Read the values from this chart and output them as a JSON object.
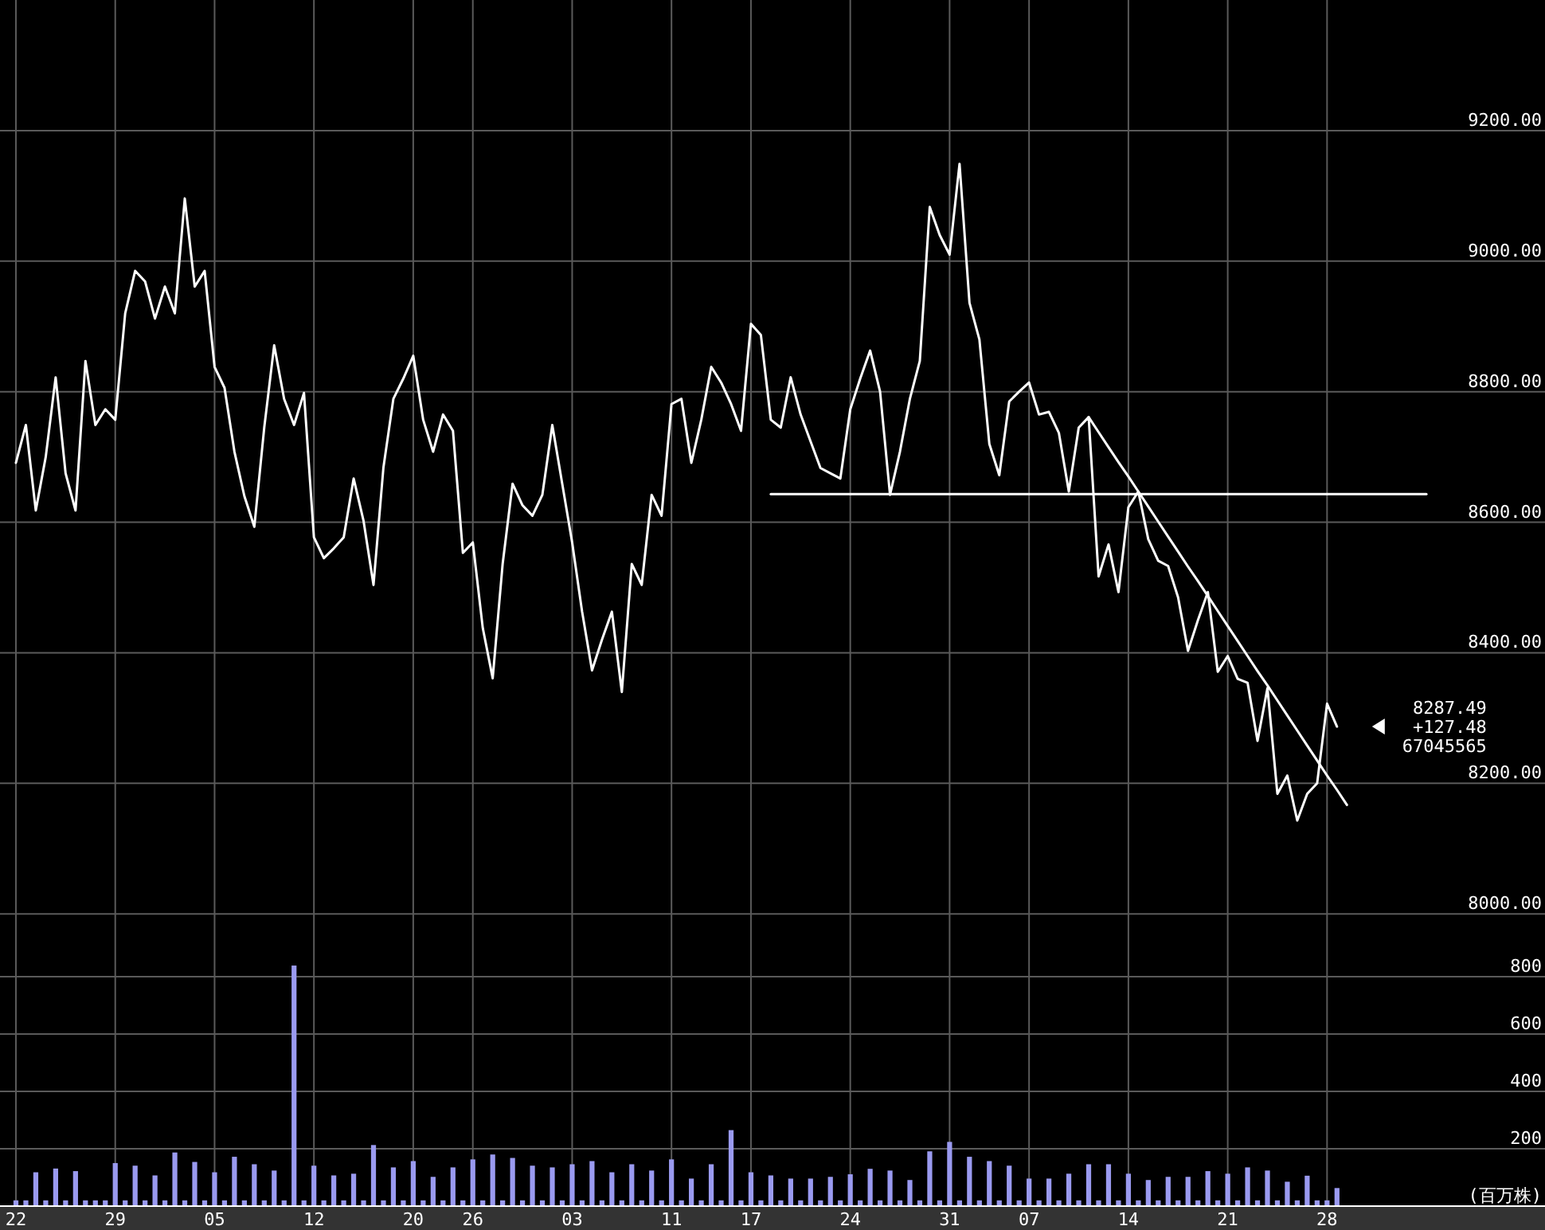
{
  "chart_data": [
    {
      "type": "line",
      "tick_labels": "y",
      "grid": true,
      "line_style": "solid",
      "marker": "none",
      "categories": [
        "22",
        null,
        null,
        null,
        null,
        null,
        null,
        null,
        null,
        null,
        "29",
        null,
        null,
        null,
        null,
        null,
        null,
        null,
        null,
        null,
        "05",
        null,
        null,
        null,
        null,
        null,
        null,
        null,
        null,
        null,
        "12",
        null,
        null,
        null,
        null,
        null,
        null,
        null,
        null,
        null,
        "20",
        null,
        null,
        null,
        null,
        null,
        "26",
        null,
        null,
        null,
        null,
        null,
        null,
        null,
        null,
        null,
        "03",
        null,
        null,
        null,
        null,
        null,
        null,
        null,
        null,
        null,
        "11",
        null,
        null,
        null,
        null,
        null,
        null,
        null,
        "17",
        null,
        null,
        null,
        null,
        null,
        null,
        null,
        null,
        null,
        "24",
        null,
        null,
        null,
        null,
        null,
        null,
        null,
        null,
        null,
        "31",
        null,
        null,
        null,
        null,
        null,
        null,
        null,
        "07",
        null,
        null,
        null,
        null,
        null,
        null,
        null,
        null,
        null,
        "14",
        null,
        null,
        null,
        null,
        null,
        null,
        null,
        null,
        null,
        "21",
        null,
        null,
        null,
        null,
        null,
        null,
        null,
        null,
        null,
        "28",
        null,
        null,
        null,
        null,
        null,
        null,
        null,
        null,
        null,
        null,
        null,
        null
      ],
      "ylim": [
        7960,
        9400
      ],
      "yticks": [
        {
          "value": 8000,
          "label": "8000.00"
        },
        {
          "value": 8200,
          "label": "8200.00"
        },
        {
          "value": 8400,
          "label": "8400.00"
        },
        {
          "value": 8600,
          "label": "8600.00"
        },
        {
          "value": 8800,
          "label": "8800.00"
        },
        {
          "value": 9000,
          "label": "9000.00"
        },
        {
          "value": 9200,
          "label": "9200.00"
        }
      ],
      "series": [
        {
          "color": "#ffffff",
          "values": [
            8691,
            8749,
            8618,
            8700,
            8822,
            8675,
            8618,
            8847,
            8749,
            8773,
            8757,
            8920,
            8985,
            8969,
            8912,
            8961,
            8920,
            9096,
            8961,
            8985,
            8838,
            8806,
            8708,
            8640,
            8593,
            8745,
            8871,
            8789,
            8749,
            8798,
            8577,
            8545,
            8560,
            8577,
            8667,
            8602,
            8504,
            8684,
            8789,
            8820,
            8855,
            8757,
            8708,
            8765,
            8740,
            8553,
            8569,
            8438,
            8361,
            8536,
            8659,
            8626,
            8610,
            8642,
            8749,
            8659,
            8569,
            8463,
            8373,
            8420,
            8463,
            8340,
            8536,
            8504,
            8642,
            8610,
            8781,
            8789,
            8691,
            8757,
            8838,
            8814,
            8781,
            8740,
            8904,
            8887,
            8757,
            8745,
            8822,
            8765,
            8724,
            8683,
            8675,
            8667,
            8773,
            8820,
            8863,
            8800,
            8642,
            8708,
            8789,
            8847,
            9083,
            9040,
            9010,
            9149,
            8936,
            8880,
            8720,
            8672,
            8785,
            8800,
            8814,
            8765,
            8769,
            8737,
            8647,
            8745,
            8761,
            8517,
            8566,
            8493,
            8623,
            8647,
            8574,
            8541,
            8533,
            8485,
            8403,
            8450,
            8493,
            8371,
            8395,
            8360,
            8354,
            8265,
            8346,
            8184,
            8212,
            8143,
            8184,
            8200,
            8322,
            8287,
            null,
            null,
            null,
            null,
            null,
            null,
            null,
            null,
            null,
            null,
            null
          ]
        },
        {
          "color": "#ffffff",
          "values": [
            null,
            null,
            null,
            null,
            null,
            null,
            null,
            null,
            null,
            null,
            null,
            null,
            null,
            null,
            null,
            null,
            null,
            null,
            null,
            null,
            null,
            null,
            null,
            null,
            null,
            null,
            null,
            null,
            null,
            null,
            null,
            null,
            null,
            null,
            null,
            null,
            null,
            null,
            null,
            null,
            null,
            null,
            null,
            null,
            null,
            null,
            null,
            null,
            null,
            null,
            null,
            null,
            null,
            null,
            null,
            null,
            null,
            null,
            null,
            null,
            null,
            null,
            null,
            null,
            null,
            null,
            null,
            null,
            null,
            null,
            null,
            null,
            null,
            null,
            null,
            null,
            null,
            null,
            null,
            null,
            null,
            null,
            null,
            null,
            null,
            null,
            null,
            null,
            null,
            null,
            null,
            null,
            null,
            null,
            null,
            null,
            null,
            null,
            null,
            null,
            null,
            null,
            null,
            null,
            null,
            null,
            null,
            null,
            8761,
            8738,
            8715,
            8692,
            8670,
            8647,
            8624,
            8601,
            8578,
            8555,
            8532,
            8510,
            8487,
            8464,
            8441,
            8418,
            8395,
            8372,
            8350,
            8327,
            8304,
            8281,
            8258,
            8235,
            8212,
            8190,
            8167,
            null,
            null,
            null,
            null,
            null,
            null,
            null,
            null,
            null,
            null
          ]
        },
        {
          "color": "#ffffff",
          "values": [
            null,
            null,
            null,
            null,
            null,
            null,
            null,
            null,
            null,
            null,
            null,
            null,
            null,
            null,
            null,
            null,
            null,
            null,
            null,
            null,
            null,
            null,
            null,
            null,
            null,
            null,
            null,
            null,
            null,
            null,
            null,
            null,
            null,
            null,
            null,
            null,
            null,
            null,
            null,
            null,
            null,
            null,
            null,
            null,
            null,
            null,
            null,
            null,
            null,
            null,
            null,
            null,
            null,
            null,
            null,
            null,
            null,
            null,
            null,
            null,
            null,
            null,
            null,
            null,
            null,
            null,
            null,
            null,
            null,
            null,
            null,
            null,
            null,
            null,
            null,
            null,
            8643,
            8643,
            8643,
            8643,
            8643,
            8643,
            8643,
            8643,
            8643,
            8643,
            8643,
            8643,
            8643,
            8643,
            8643,
            8643,
            8643,
            8643,
            8643,
            8643,
            8643,
            8643,
            8643,
            8643,
            8643,
            8643,
            8643,
            8643,
            8643,
            8643,
            8643,
            8643,
            8643,
            8643,
            8643,
            8643,
            8643,
            8643,
            8643,
            8643,
            8643,
            8643,
            8643,
            8643,
            8643,
            8643,
            8643,
            8643,
            8643,
            8643,
            8643,
            8643,
            8643,
            8643,
            8643,
            8643,
            8643,
            8643,
            8643,
            8643,
            8643,
            8643,
            8643,
            8643,
            8643,
            8643,
            8643,
            null,
            null
          ]
        }
      ],
      "annotations": [
        "8287.49",
        "+127.48",
        "67045565"
      ]
    },
    {
      "type": "bar",
      "grid": true,
      "ylabel": "(百万株)",
      "color": "#9a9af0",
      "categories": [
        "22",
        null,
        null,
        null,
        null,
        null,
        null,
        null,
        null,
        null,
        "29",
        null,
        null,
        null,
        null,
        null,
        null,
        null,
        null,
        null,
        "05",
        null,
        null,
        null,
        null,
        null,
        null,
        null,
        null,
        null,
        "12",
        null,
        null,
        null,
        null,
        null,
        null,
        null,
        null,
        null,
        "20",
        null,
        null,
        null,
        null,
        null,
        "26",
        null,
        null,
        null,
        null,
        null,
        null,
        null,
        null,
        null,
        "03",
        null,
        null,
        null,
        null,
        null,
        null,
        null,
        null,
        null,
        "11",
        null,
        null,
        null,
        null,
        null,
        null,
        null,
        "17",
        null,
        null,
        null,
        null,
        null,
        null,
        null,
        null,
        null,
        "24",
        null,
        null,
        null,
        null,
        null,
        null,
        null,
        null,
        null,
        "31",
        null,
        null,
        null,
        null,
        null,
        null,
        null,
        "07",
        null,
        null,
        null,
        null,
        null,
        null,
        null,
        null,
        null,
        "14",
        null,
        null,
        null,
        null,
        null,
        null,
        null,
        null,
        null,
        "21",
        null,
        null,
        null,
        null,
        null,
        null,
        null,
        null,
        null,
        "28",
        null,
        null,
        null,
        null,
        null,
        null,
        null,
        null,
        null,
        null,
        null,
        null
      ],
      "ylim": [
        0,
        928
      ],
      "yticks": [
        200,
        400,
        600,
        800
      ],
      "values": [
        20,
        20,
        118,
        20,
        131,
        20,
        122,
        20,
        20,
        20,
        150,
        20,
        141,
        20,
        107,
        20,
        187,
        20,
        154,
        20,
        118,
        20,
        172,
        20,
        146,
        20,
        124,
        20,
        839,
        20,
        141,
        20,
        107,
        20,
        113,
        20,
        213,
        20,
        135,
        20,
        157,
        20,
        102,
        20,
        135,
        20,
        163,
        20,
        180,
        20,
        168,
        20,
        141,
        20,
        135,
        20,
        146,
        20,
        157,
        20,
        118,
        20,
        146,
        20,
        124,
        20,
        163,
        20,
        96,
        20,
        146,
        20,
        265,
        20,
        118,
        20,
        107,
        20,
        96,
        20,
        96,
        20,
        102,
        20,
        111,
        20,
        130,
        20,
        124,
        20,
        91,
        20,
        191,
        20,
        224,
        20,
        172,
        20,
        157,
        20,
        141,
        20,
        96,
        20,
        96,
        20,
        113,
        20,
        146,
        20,
        146,
        20,
        113,
        20,
        91,
        20,
        102,
        20,
        102,
        20,
        122,
        20,
        113,
        20,
        135,
        20,
        124,
        20,
        85,
        20,
        106,
        20,
        20,
        63,
        null,
        null,
        null,
        null,
        null,
        null,
        null,
        null,
        null,
        null,
        null
      ]
    }
  ]
}
